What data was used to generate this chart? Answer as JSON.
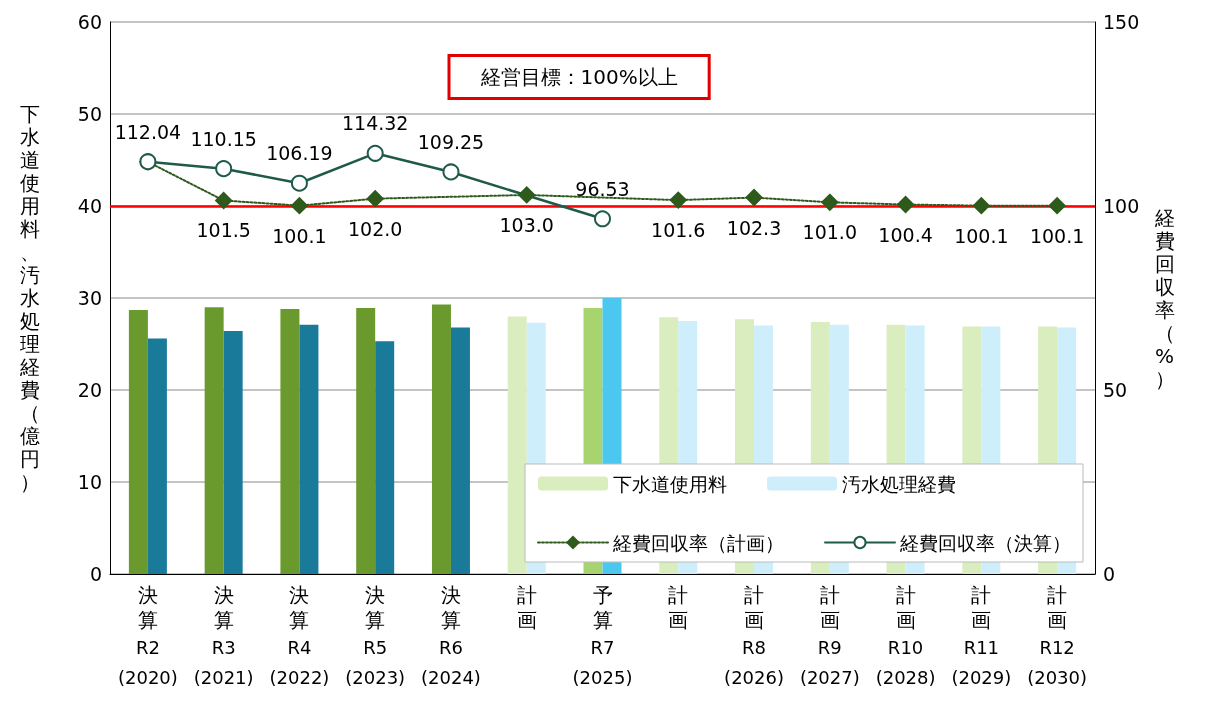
{
  "chart_data": {
    "type": "bar",
    "ylabel": "下水道使用料、汚水処理経費（億円）",
    "y2label": "経費回収率（%）",
    "categories": [
      "決算\nR2\n(2020)",
      "決算\nR3\n(2021)",
      "決算\nR4\n(2022)",
      "決算\nR5\n(2023)",
      "決算\nR6\n(2024)",
      "計画",
      "予算\nR7\n(2025)",
      "計画",
      "計画\nR8\n(2026)",
      "計画\nR9\n(2027)",
      "計画\nR10\n(2028)",
      "計画\nR11\n(2029)",
      "計画\nR12\n(2030)"
    ],
    "ylim": [
      0,
      60
    ],
    "yticks": [
      0,
      10,
      20,
      30,
      40,
      50,
      60
    ],
    "y2lim": [
      0,
      150
    ],
    "y2ticks": [
      0,
      50,
      100,
      150
    ],
    "grid": "y",
    "legend": "bottom right",
    "series": [
      {
        "name": "下水道使用料",
        "color": "#d9edbf",
        "colors": [
          "#6a9a2e",
          "#6a9a2e",
          "#6a9a2e",
          "#6a9a2e",
          "#6a9a2e",
          "#d9edbf",
          "#a8d46f",
          "#d9edbf",
          "#d9edbf",
          "#d9edbf",
          "#d9edbf",
          "#d9edbf",
          "#d9edbf"
        ],
        "values": [
          28.7,
          29.0,
          28.8,
          28.9,
          29.3,
          28.0,
          28.9,
          27.9,
          27.7,
          27.4,
          27.1,
          26.9,
          26.9
        ]
      },
      {
        "name": "汚水処理経費",
        "color": "#cdeefa",
        "colors": [
          "#1a7a9a",
          "#1a7a9a",
          "#1a7a9a",
          "#1a7a9a",
          "#1a7a9a",
          "#cdeefa",
          "#4cc8f0",
          "#cdeefa",
          "#cdeefa",
          "#cdeefa",
          "#cdeefa",
          "#cdeefa",
          "#cdeefa"
        ],
        "values": [
          25.6,
          26.4,
          27.1,
          25.3,
          26.8,
          27.3,
          30.0,
          27.5,
          27.0,
          27.1,
          27.0,
          26.9,
          26.8
        ]
      },
      {
        "name": "経費回収率（計画）",
        "type": "line",
        "axis": "y2",
        "color": "#2e5a1c",
        "marker": "diamond",
        "line_style": "dotted",
        "values": [
          112.0,
          101.5,
          100.1,
          102.0,
          null,
          103.0,
          null,
          101.6,
          102.3,
          101.0,
          100.4,
          100.1,
          100.1
        ],
        "value_labels": [
          null,
          "101.5",
          "100.1",
          "102.0",
          null,
          "103.0",
          null,
          "101.6",
          "102.3",
          "101.0",
          "100.4",
          "100.1",
          "100.1"
        ]
      },
      {
        "name": "経費回収率（決算）",
        "type": "line",
        "axis": "y2",
        "color": "#1f5a4a",
        "marker": "circle",
        "line_style": "solid",
        "values": [
          112.04,
          110.15,
          106.19,
          114.32,
          109.25,
          null,
          96.53,
          null,
          null,
          null,
          null,
          null,
          null
        ],
        "value_labels": [
          "112.04",
          "110.15",
          "106.19",
          "114.32",
          "109.25",
          null,
          "96.53",
          null,
          null,
          null,
          null,
          null,
          null
        ]
      }
    ],
    "ref_lines": [
      {
        "axis": "y2",
        "value": 100,
        "color": "#ff0000",
        "line_style": "solid"
      }
    ],
    "annotations": [
      "経営目標：100%以上"
    ]
  }
}
